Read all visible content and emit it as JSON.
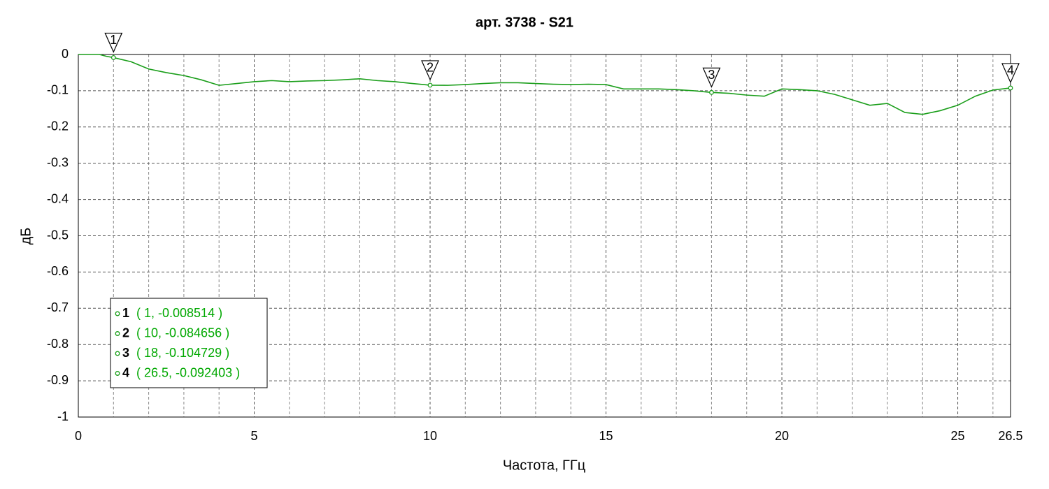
{
  "chart_data": {
    "type": "line",
    "title": "арт. 3738 - S21",
    "x_label": "Частота, ГГц",
    "y_label": "дБ",
    "xlim": [
      0,
      26.5
    ],
    "ylim": [
      -1,
      0
    ],
    "xticks": [
      0,
      5,
      10,
      15,
      20,
      25,
      26.5
    ],
    "x_minor_grid": [
      1,
      2,
      3,
      4,
      6,
      7,
      8,
      9,
      11,
      12,
      13,
      14,
      16,
      17,
      18,
      19,
      21,
      22,
      23,
      24,
      26
    ],
    "yticks": [
      0,
      -0.1,
      -0.2,
      -0.3,
      -0.4,
      -0.5,
      -0.6,
      -0.7,
      -0.8,
      -0.9,
      -1
    ],
    "grid": true,
    "series": [
      {
        "color": "#1a9e1a",
        "x": [
          0,
          0.6,
          0.8,
          1,
          1.5,
          2,
          2.5,
          3,
          3.5,
          4,
          4.5,
          5,
          5.5,
          6,
          6.5,
          7,
          7.5,
          8,
          8.5,
          9,
          9.5,
          10,
          10.5,
          11,
          11.5,
          12,
          12.5,
          13,
          13.5,
          14,
          14.5,
          15,
          15.5,
          16,
          16.5,
          17,
          17.5,
          18,
          18.5,
          19,
          19.5,
          20,
          20.5,
          21,
          21.5,
          22,
          22.5,
          23,
          23.5,
          24,
          24.5,
          25,
          25.5,
          26,
          26.5
        ],
        "values": [
          0,
          0,
          -0.005,
          -0.0085,
          -0.02,
          -0.04,
          -0.05,
          -0.058,
          -0.07,
          -0.085,
          -0.08,
          -0.075,
          -0.072,
          -0.075,
          -0.073,
          -0.072,
          -0.07,
          -0.067,
          -0.072,
          -0.075,
          -0.08,
          -0.0847,
          -0.085,
          -0.083,
          -0.08,
          -0.078,
          -0.078,
          -0.08,
          -0.082,
          -0.083,
          -0.082,
          -0.083,
          -0.095,
          -0.095,
          -0.095,
          -0.097,
          -0.1,
          -0.1047,
          -0.107,
          -0.112,
          -0.115,
          -0.095,
          -0.097,
          -0.1,
          -0.11,
          -0.125,
          -0.14,
          -0.135,
          -0.16,
          -0.165,
          -0.155,
          -0.14,
          -0.115,
          -0.098,
          -0.0924
        ]
      }
    ],
    "markers": [
      {
        "label": "1",
        "x": 1,
        "y": -0.008514,
        "text": "( 1, -0.008514 )"
      },
      {
        "label": "2",
        "x": 10,
        "y": -0.084656,
        "text": "( 10, -0.084656 )"
      },
      {
        "label": "3",
        "x": 18,
        "y": -0.104729,
        "text": "( 18, -0.104729 )"
      },
      {
        "label": "4",
        "x": 26.5,
        "y": -0.092403,
        "text": "( 26.5, -0.092403 )"
      }
    ],
    "marker_text_color": "#00a800"
  }
}
